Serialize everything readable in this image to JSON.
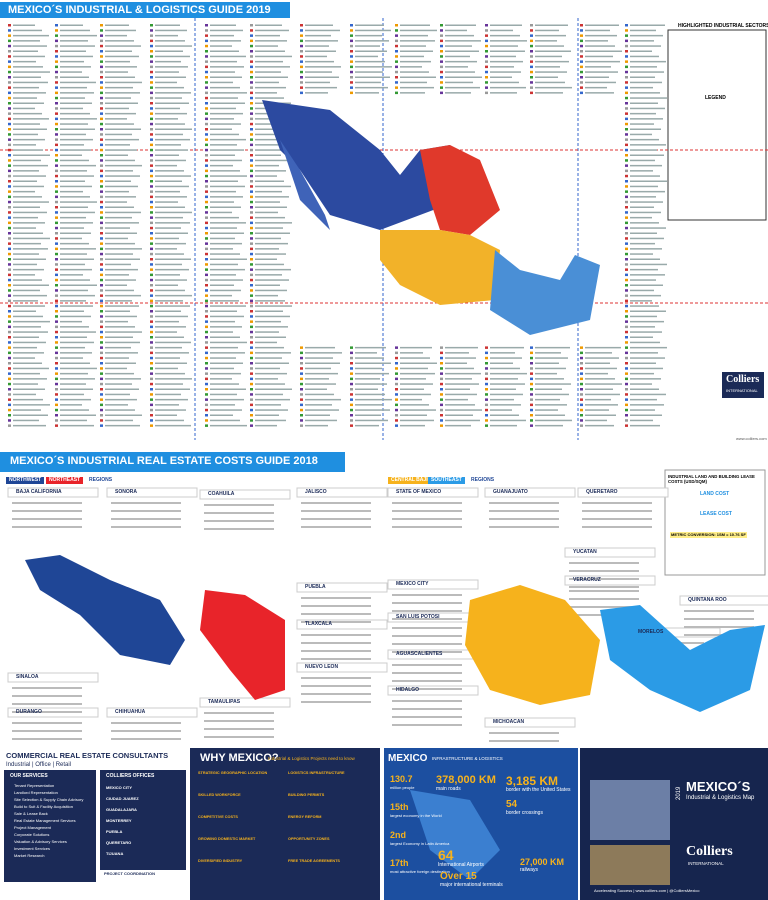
{
  "guide": {
    "title": "MEXICO´S INDUSTRIAL & LOGISTICS GUIDE 2019",
    "sectors_title": "HIGHLIGHTED INDUSTRIAL SECTORS",
    "legend_title": "LEGEND",
    "logo": "Colliers",
    "logo_sub": "INTERNATIONAL",
    "site": "www.colliers.com"
  },
  "costs": {
    "title": "MEXICO´S INDUSTRIAL REAL ESTATE COSTS GUIDE 2018",
    "tabs_left": [
      "NORTHWEST",
      "NORTHEAST",
      "REGIONS"
    ],
    "tabs_right": [
      "CENTRAL BAJIO",
      "SOUTHEAST",
      "REGIONS"
    ],
    "states": [
      "BAJA CALIFORNIA",
      "SONORA",
      "COAHUILA",
      "JALISCO",
      "STATE OF MEXICO",
      "GUANAJUATO",
      "QUERETARO",
      "SINALOA",
      "DURANGO",
      "CHIHUAHUA",
      "TAMAULIPAS",
      "PUEBLA",
      "TLAXCALA",
      "NUEVO LEON",
      "MEXICO CITY",
      "SAN LUIS POTOSI",
      "AGUASCALIENTES",
      "HIDALGO",
      "YUCATAN",
      "QUINTANA ROO",
      "MORELOS",
      "VERACRUZ",
      "MICHOACAN"
    ],
    "info": {
      "title": "INDUSTRIAL LAND AND BUILDING LEASE COSTS (USD/SQM)",
      "land": "LAND COST",
      "lease": "LEASE COST",
      "conversion": "METRIC CONVERSION: 1SM = 10.76 SF"
    }
  },
  "footer": {
    "consultants": "COMMERCIAL REAL ESTATE CONSULTANTS",
    "lines": "Industrial | Office | Retail",
    "services_title": "OUR SERVICES",
    "services": [
      "Tenant Representation",
      "Landlord Representation",
      "Site Selection & Supply Chain Advisory",
      "Build to Suit & Facility Acquisition",
      "Sale & Lease Back",
      "Real Estate Management Services",
      "Project Management",
      "Corporate Solutions",
      "Valuation & Advisory Services",
      "Investment Services",
      "Market Research"
    ],
    "offices_title": "COLLIERS OFFICES",
    "offices": [
      "MEXICO CITY",
      "CIUDAD JUAREZ",
      "GUADALAJARA",
      "MONTERREY",
      "PUEBLA",
      "QUERETARO",
      "TIJUANA"
    ],
    "coordination": "PROJECT COORDINATION",
    "why_title": "WHY MEXICO?",
    "why_sub": "Industrial & Logistics Projects need to know",
    "why_items": [
      "STRATEGIC GEOGRAPHIC LOCATION",
      "SKILLED WORKFORCE",
      "COMPETITIVE COSTS",
      "GROWING DOMESTIC MARKET",
      "DIVERSIFIED INDUSTRY",
      "LOGISTICS INFRASTRUCTURE",
      "BUILDING PERMITS",
      "ENERGY REFORM",
      "OPPORTUNITY ZONES",
      "FREE TRADE AGREEMENTS"
    ],
    "infra_title": "MEXICO",
    "infra_sub": "INFRASTRUCTURE & LOGISTICS",
    "stats": [
      {
        "num": "130.7",
        "text": "million people"
      },
      {
        "num": "15th",
        "text": "largest economy in the World"
      },
      {
        "num": "2nd",
        "text": "largest Economy in Latin America"
      },
      {
        "num": "17th",
        "text": "most attractive foreign destination"
      }
    ],
    "roads": {
      "num": "378,000 KM",
      "text": "main roads"
    },
    "border": {
      "num": "3,185 KM",
      "text": "border with the United States"
    },
    "crossings": {
      "num": "54",
      "text": "border crossings"
    },
    "airports": {
      "num": "64",
      "text": "International Airports"
    },
    "terminals": {
      "num": "Over 15",
      "text": "major international terminals"
    },
    "rail": {
      "num": "27,000 KM",
      "text": "railways"
    },
    "cover_year": "2019",
    "cover_title": "MEXICO´S",
    "cover_sub": "Industrial & Logistics Map",
    "cover_logo": "Colliers",
    "cover_logo_sub": "INTERNATIONAL",
    "tagline": "Accelerating Success | www.colliers.com | @ColliersMexico"
  }
}
